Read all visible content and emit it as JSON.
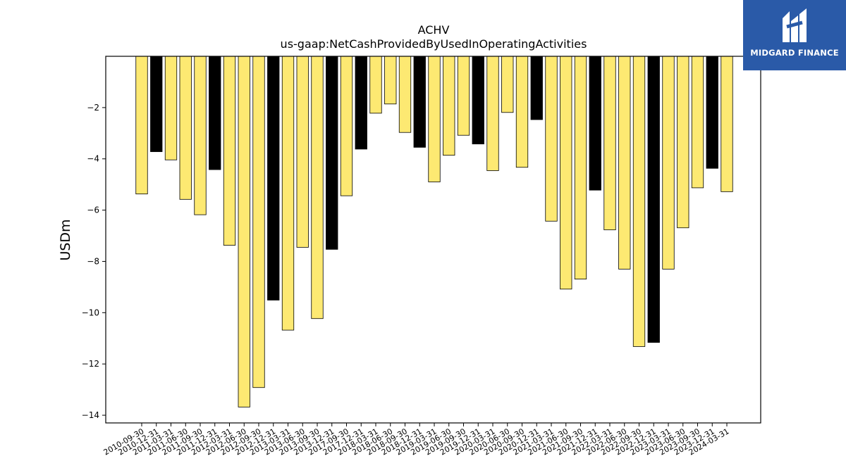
{
  "brand": {
    "name": "MIDGARD FINANCE",
    "colors": {
      "background": "#2a5aa8",
      "text": "#ffffff"
    },
    "icon": "midgard-logo-icon"
  },
  "chart_data": {
    "type": "bar",
    "title": "ACHV",
    "subtitle": "us-gaap:NetCashProvidedByUsedInOperatingActivities",
    "ylabel": "USDm",
    "xlabel": "",
    "ylim": [
      -14.3,
      0.0
    ],
    "yticks": [
      -2,
      -4,
      -6,
      -8,
      -10,
      -12,
      -14
    ],
    "grid": false,
    "colors": {
      "quarter": "#fde972",
      "year_end": "#000000",
      "edge": "#000000"
    },
    "categories": [
      "2010-09-30",
      "2010-12-31",
      "2011-03-31",
      "2011-06-30",
      "2011-09-30",
      "2011-12-31",
      "2012-03-31",
      "2012-06-30",
      "2012-09-30",
      "2012-12-31",
      "2013-03-31",
      "2013-06-30",
      "2013-09-30",
      "2013-12-31",
      "2017-09-30",
      "2017-12-31",
      "2018-03-31",
      "2018-06-30",
      "2018-09-30",
      "2018-12-31",
      "2019-03-31",
      "2019-06-30",
      "2019-09-30",
      "2019-12-31",
      "2020-03-31",
      "2020-06-30",
      "2020-09-30",
      "2020-12-31",
      "2021-03-31",
      "2021-06-30",
      "2021-09-30",
      "2021-12-31",
      "2022-03-31",
      "2022-06-30",
      "2022-09-30",
      "2022-12-31",
      "2023-03-31",
      "2023-06-30",
      "2023-09-30",
      "2023-12-31",
      "2024-03-31"
    ],
    "values": [
      -5.37,
      -3.72,
      -4.04,
      -5.58,
      -6.18,
      -4.42,
      -7.37,
      -13.68,
      -12.92,
      -9.51,
      -10.68,
      -7.45,
      -10.23,
      -7.53,
      -5.44,
      -3.62,
      -2.22,
      -1.86,
      -2.97,
      -3.55,
      -4.9,
      -3.86,
      -3.08,
      -3.42,
      -4.46,
      -2.19,
      -4.33,
      -2.47,
      -6.43,
      -9.08,
      -8.69,
      -5.22,
      -6.77,
      -8.3,
      -11.32,
      -11.16,
      -8.3,
      -6.69,
      -5.13,
      -4.37,
      -5.28
    ],
    "year_end": [
      false,
      true,
      false,
      false,
      false,
      true,
      false,
      false,
      false,
      true,
      false,
      false,
      false,
      true,
      false,
      true,
      false,
      false,
      false,
      true,
      false,
      false,
      false,
      true,
      false,
      false,
      false,
      true,
      false,
      false,
      false,
      true,
      false,
      false,
      false,
      true,
      false,
      false,
      false,
      true,
      false
    ]
  }
}
